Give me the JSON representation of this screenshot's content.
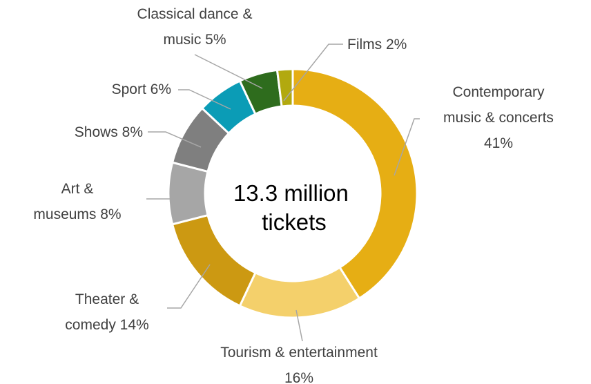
{
  "chart_data": {
    "type": "pie",
    "variant": "donut",
    "title": "",
    "center_label": [
      "13.3 million",
      "tickets"
    ],
    "slices": [
      {
        "label": [
          "Contemporary",
          "music & concerts",
          "41%"
        ],
        "value": 41,
        "color": "#E6AE14"
      },
      {
        "label": [
          "Tourism & entertainment",
          "16%"
        ],
        "value": 16,
        "color": "#F4D06B"
      },
      {
        "label": [
          "Theater &",
          "comedy 14%"
        ],
        "value": 14,
        "color": "#CC9912"
      },
      {
        "label": [
          "Art &",
          "museums 8%"
        ],
        "value": 8,
        "color": "#A6A6A6"
      },
      {
        "label": [
          "Shows 8%"
        ],
        "value": 8,
        "color": "#7F7F7F"
      },
      {
        "label": [
          "Sport 6%"
        ],
        "value": 6,
        "color": "#0B9CB6"
      },
      {
        "label": [
          "Classical dance &",
          "music 5%"
        ],
        "value": 5,
        "color": "#2E6C1D"
      },
      {
        "label": [
          "Films 2%"
        ],
        "value": 2,
        "color": "#B2A90F"
      }
    ],
    "legend": "none",
    "grid": false
  }
}
